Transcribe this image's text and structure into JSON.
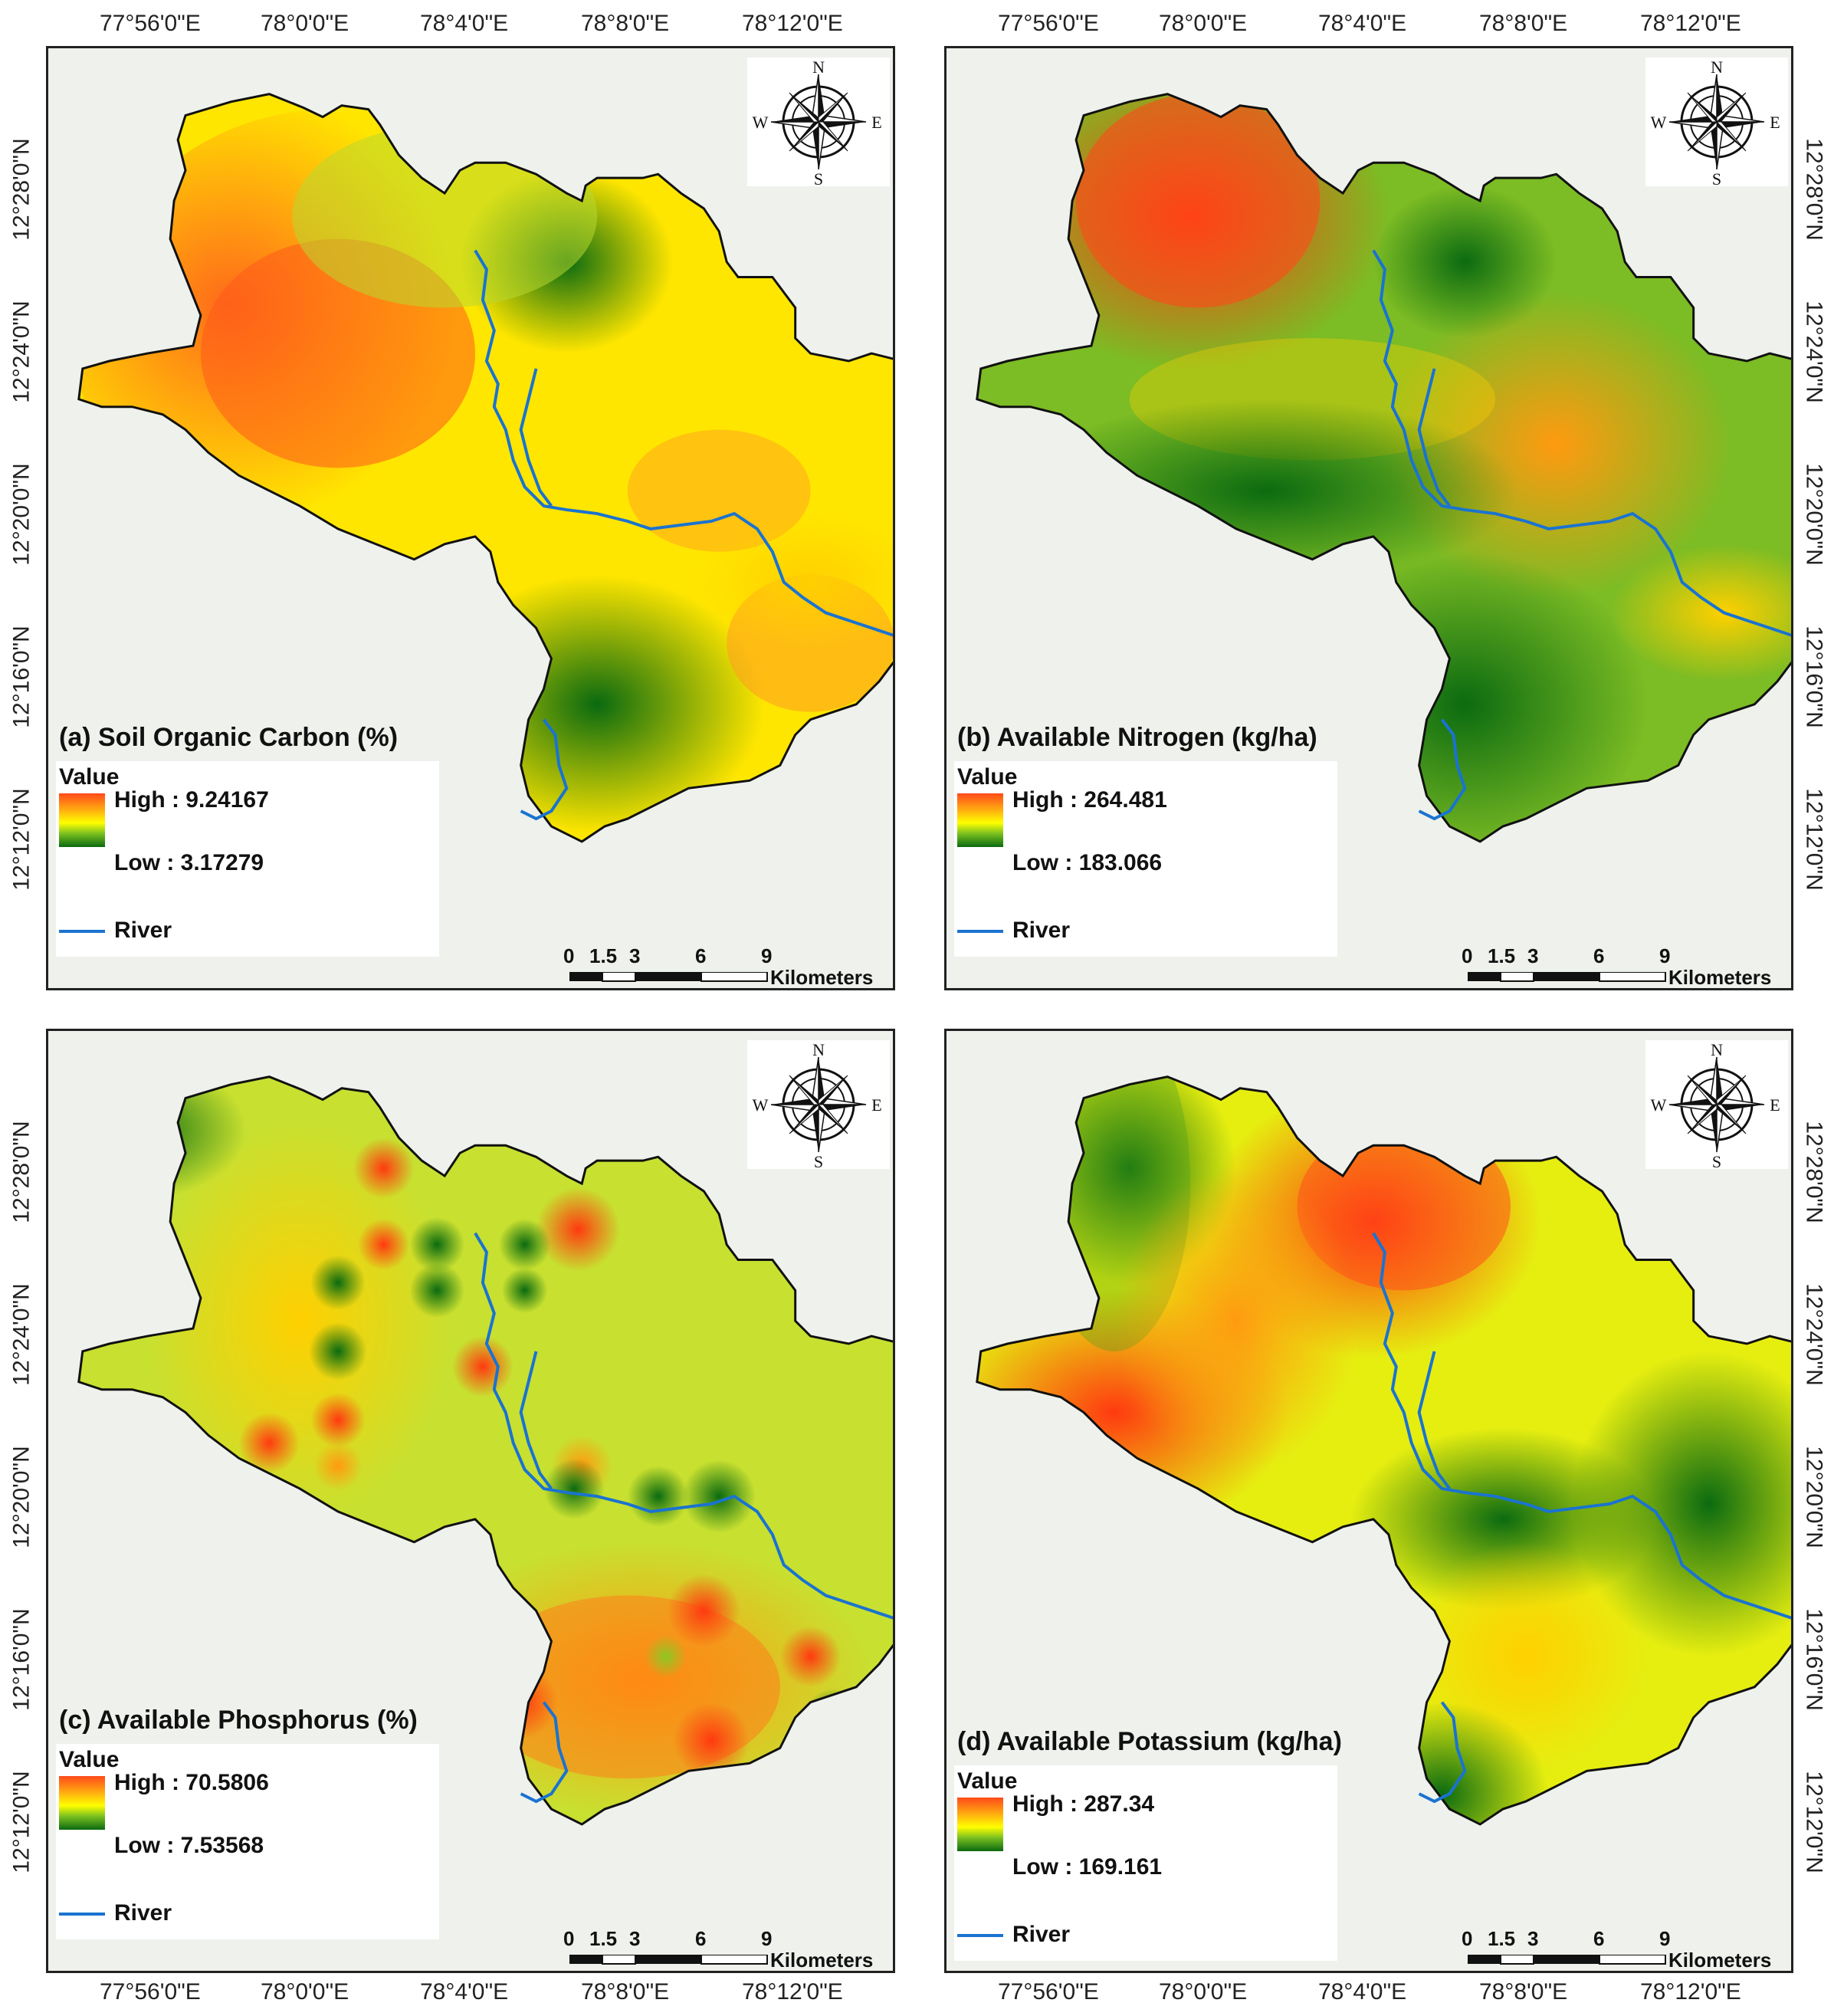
{
  "axes": {
    "top_ticks": [
      "77°56'0\"E",
      "78°0'0\"E",
      "78°4'0\"E",
      "78°8'0\"E",
      "78°12'0\"E"
    ],
    "bottom_ticks": [
      "77°56'0\"E",
      "78°0'0\"E",
      "78°4'0\"E",
      "78°8'0\"E",
      "78°12'0\"E"
    ],
    "lat_ticks": [
      "12°28'0\"N",
      "12°24'0\"N",
      "12°20'0\"N",
      "12°16'0\"N",
      "12°12'0\"N"
    ]
  },
  "compass": {
    "n": "N",
    "s": "S",
    "w": "W",
    "e": "E"
  },
  "scale": {
    "labels": [
      "0",
      "1.5",
      "3",
      "6",
      "9"
    ],
    "unit": "Kilometers"
  },
  "legend_common": {
    "value_label": "Value",
    "river_label": "River",
    "river_color": "#1a73d0"
  },
  "color_ramp": [
    "#ff4a1a",
    "#ffaa10",
    "#ffff00",
    "#7ac020",
    "#0a6a10"
  ],
  "panels": [
    {
      "title": "(a) Soil Organic Carbon (%)",
      "high": "High : 9.24167",
      "low": "Low : 3.17279"
    },
    {
      "title": "(b) Available Nitrogen (kg/ha)",
      "high": "High : 264.481",
      "low": "Low : 183.066"
    },
    {
      "title": "(c) Available Phosphorus (%)",
      "high": "High : 70.5806",
      "low": "Low : 7.53568"
    },
    {
      "title": "(d) Available Potassium (kg/ha)",
      "high": "High : 287.34",
      "low": "Low : 169.161"
    }
  ]
}
